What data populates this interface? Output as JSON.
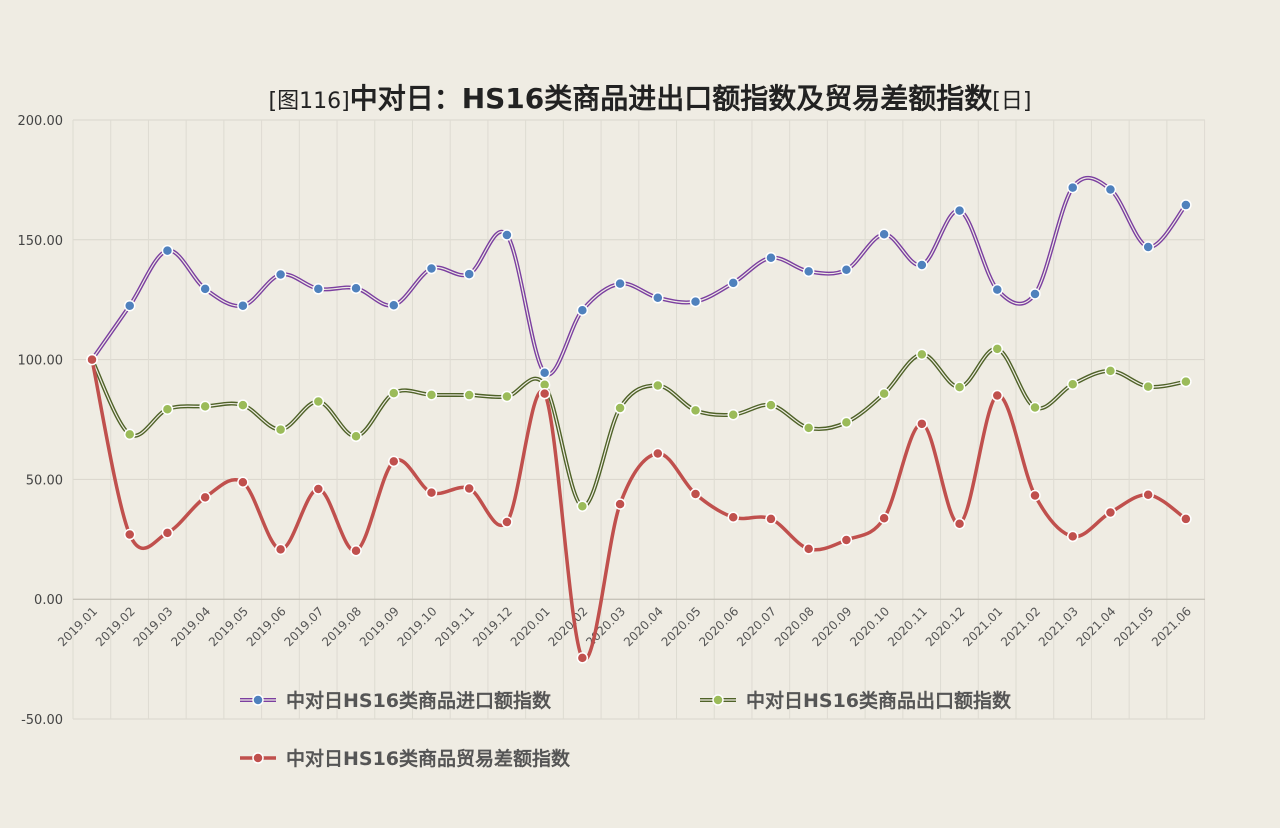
{
  "chart_data": {
    "type": "line",
    "title": {
      "prefix": "[图116]",
      "main": "中对日：HS16类商品进出口额指数及贸易差额指数",
      "suffix": "[日]"
    },
    "x": [
      "2019.01",
      "2019.02",
      "2019.03",
      "2019.04",
      "2019.05",
      "2019.06",
      "2019.07",
      "2019.08",
      "2019.09",
      "2019.10",
      "2019.11",
      "2019.12",
      "2020.01",
      "2020.02",
      "2020.03",
      "2020.04",
      "2020.05",
      "2020.06",
      "2020.07",
      "2020.08",
      "2020.09",
      "2020.10",
      "2020.11",
      "2020.12",
      "2021.01",
      "2021.02",
      "2021.03",
      "2021.04",
      "2021.05",
      "2021.06"
    ],
    "y_ticks": [
      "200.00",
      "150.00",
      "100.00",
      "50.00",
      "0.00",
      "-50.00"
    ],
    "ylim": [
      -50,
      200
    ],
    "grid": true,
    "legend_position": "bottom",
    "series": [
      {
        "name": "中对日HS16类商品进口额指数",
        "line_color": "#7b3fa0",
        "marker_color": "#4f81bd",
        "values": [
          100,
          122.5,
          145.5,
          129.5,
          122.5,
          135.5,
          129.5,
          129.8,
          122.7,
          138,
          135.7,
          152,
          94.5,
          120.6,
          131.7,
          125.8,
          124.2,
          132,
          142.5,
          136.8,
          137.5,
          152.3,
          139.5,
          162.2,
          129.2,
          127.4,
          171.8,
          171,
          147,
          164.5
        ]
      },
      {
        "name": "中对日HS16类商品出口额指数",
        "line_color": "#4f6228",
        "marker_color": "#9bbb59",
        "values": [
          100,
          68.8,
          79.3,
          80.5,
          81,
          70.8,
          82.5,
          68,
          86,
          85.3,
          85.2,
          84.6,
          89.5,
          38.8,
          79.8,
          89.2,
          78.8,
          77,
          81,
          71.5,
          73.8,
          85.8,
          102.2,
          88.5,
          104.5,
          80,
          89.7,
          95.3,
          88.7,
          90.8
        ]
      },
      {
        "name": "中对日HS16类商品贸易差额指数",
        "line_color": "#c0504d",
        "marker_color": "#c0504d",
        "values": [
          100,
          27,
          27.7,
          42.5,
          48.8,
          20.8,
          46,
          20.2,
          57.5,
          44.5,
          46.2,
          32.2,
          85.8,
          -24.5,
          39.7,
          60.8,
          43.9,
          34.2,
          33.5,
          21,
          24.7,
          33.8,
          73.2,
          31.5,
          85,
          43.3,
          26.2,
          36.2,
          43.6,
          33.5
        ]
      }
    ]
  }
}
